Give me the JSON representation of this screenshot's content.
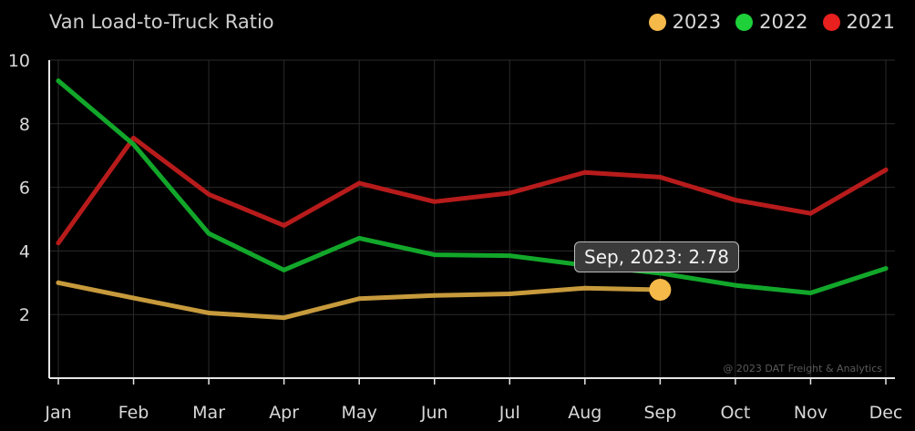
{
  "title": "Van Load-to-Truck Ratio",
  "credit": "@ 2023 DAT Freight & Analytics",
  "tooltip": {
    "text": "Sep, 2023: 2.78",
    "series": "2023",
    "index": 8
  },
  "chart_data": {
    "type": "line",
    "title": "Van Load-to-Truck Ratio",
    "xlabel": "",
    "ylabel": "",
    "categories": [
      "Jan",
      "Feb",
      "Mar",
      "Apr",
      "May",
      "Jun",
      "Jul",
      "Aug",
      "Sep",
      "Oct",
      "Nov",
      "Dec"
    ],
    "ylim": [
      0,
      10
    ],
    "yticks": [
      2,
      4,
      6,
      8,
      10
    ],
    "grid": true,
    "legend_position": "top-right",
    "series": [
      {
        "name": "2023",
        "color": "#f5b94a",
        "line_color": "#c79a3c",
        "values": [
          3.0,
          2.52,
          2.05,
          1.9,
          2.5,
          2.6,
          2.65,
          2.83,
          2.78,
          null,
          null,
          null
        ]
      },
      {
        "name": "2022",
        "color": "#1ed13a",
        "line_color": "#12a72a",
        "values": [
          9.35,
          7.35,
          4.55,
          3.4,
          4.4,
          3.88,
          3.85,
          3.55,
          3.3,
          2.92,
          2.68,
          3.45
        ]
      },
      {
        "name": "2021",
        "color": "#e8201e",
        "line_color": "#b71b1b",
        "values": [
          4.25,
          7.55,
          5.78,
          4.8,
          6.13,
          5.55,
          5.82,
          6.47,
          6.32,
          5.6,
          5.18,
          6.55
        ]
      }
    ]
  }
}
